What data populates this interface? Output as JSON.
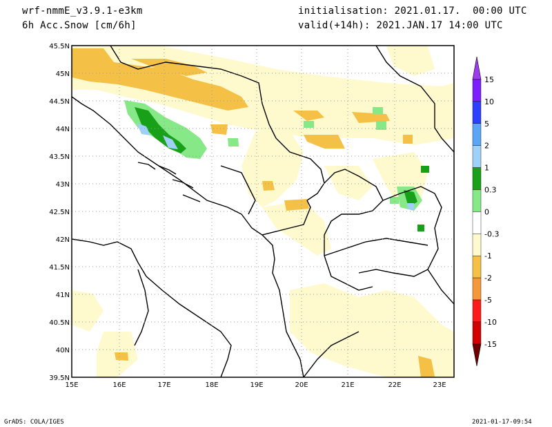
{
  "header": {
    "model": "wrf-nmmE_v3.9.1-e3km",
    "variable": "6h Acc.Snow [cm/6h]",
    "init": "initialisation: 2021.01.17.  00:00 UTC",
    "valid": "valid(+14h): 2021.JAN.17 14:00 UTC"
  },
  "map": {
    "lon_ticks": [
      "15E",
      "16E",
      "17E",
      "18E",
      "19E",
      "20E",
      "21E",
      "22E",
      "23E"
    ],
    "lat_ticks": [
      "45.5N",
      "45N",
      "44.5N",
      "44N",
      "43.5N",
      "43N",
      "42.5N",
      "42N",
      "41.5N",
      "41N",
      "40.5N",
      "40N",
      "39.5N"
    ]
  },
  "colorbar": {
    "labels": [
      "15",
      "10",
      "5",
      "2",
      "1",
      "0.3",
      "0",
      "-0.3",
      "-1",
      "-2",
      "-5",
      "-10",
      "-15"
    ],
    "colors": [
      "#7a20ff",
      "#2e40ff",
      "#5aa5f5",
      "#9fd0f8",
      "#18a018",
      "#86e886",
      "#ffffff",
      "#fffacd",
      "#f5c046",
      "#f5983a",
      "#ff1a1a",
      "#d20000",
      "#960000"
    ],
    "top_color": "#a03cf0",
    "bottom_color": "#6e0000"
  },
  "footer": {
    "left": "GrADS: COLA/IGES",
    "right": "2021-01-17-09:54"
  }
}
